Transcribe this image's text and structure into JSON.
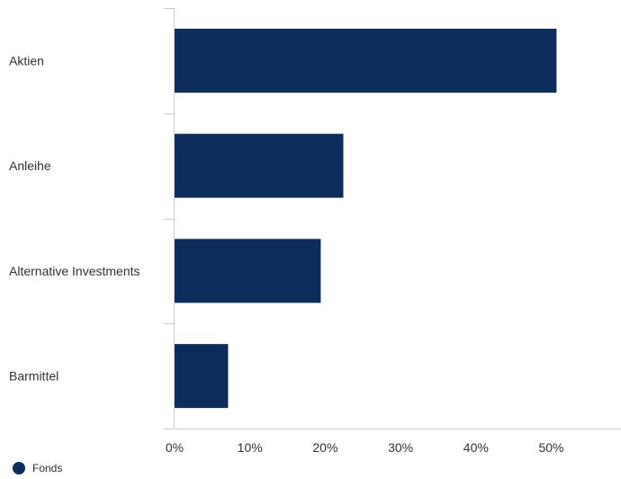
{
  "chart_data": {
    "type": "bar",
    "orientation": "horizontal",
    "categories": [
      "Aktien",
      "Anleihe",
      "Alternative Investments",
      "Barmittel"
    ],
    "series": [
      {
        "name": "Fonds",
        "values": [
          50.7,
          22.4,
          19.4,
          7.1
        ]
      }
    ],
    "xlim": [
      0,
      59
    ],
    "xticks": [
      0,
      10,
      20,
      30,
      40,
      50
    ],
    "xtick_labels": [
      "0%",
      "10%",
      "20%",
      "30%",
      "40%",
      "50%"
    ],
    "grid": false,
    "legend": "bottom-left",
    "colors": {
      "bar": "#0c2c5c",
      "axis": "#cccccc",
      "text": "#333333"
    }
  }
}
